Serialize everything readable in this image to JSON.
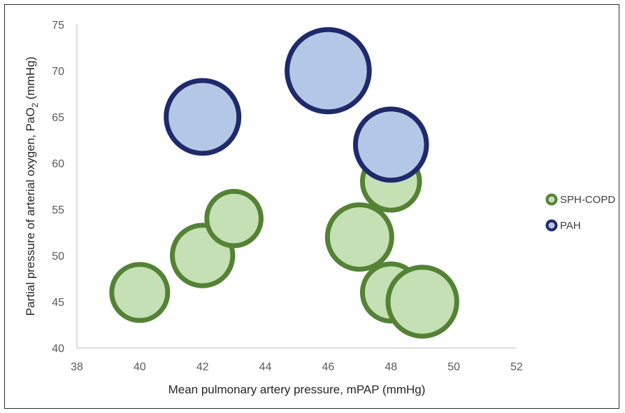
{
  "chart_data": {
    "type": "bubble",
    "title": "",
    "xlabel": "Mean pulmonary artery pressure,  mPAP (mmHg)",
    "ylabel": {
      "main": "Partial pressure of arterial oxygen, PaO",
      "subscript": "2",
      "unit": " (mmHg)"
    },
    "xlim": [
      38,
      52
    ],
    "ylim": [
      40,
      75
    ],
    "xticks": [
      38,
      40,
      42,
      44,
      46,
      48,
      50,
      52
    ],
    "yticks": [
      40,
      45,
      50,
      55,
      60,
      65,
      70,
      75
    ],
    "grid": false,
    "legend_position": "right",
    "series": [
      {
        "name": "SPH-COPD",
        "fill": "#c5e0b4",
        "stroke": "#548235",
        "points": [
          {
            "x": 40,
            "y": 46,
            "size": 1.0
          },
          {
            "x": 42,
            "y": 50,
            "size": 1.08
          },
          {
            "x": 43,
            "y": 54,
            "size": 0.97
          },
          {
            "x": 47,
            "y": 52,
            "size": 1.15
          },
          {
            "x": 48,
            "y": 58,
            "size": 1.02
          },
          {
            "x": 48,
            "y": 46,
            "size": 1.02
          },
          {
            "x": 49,
            "y": 45,
            "size": 1.23
          }
        ]
      },
      {
        "name": "PAH",
        "fill": "#b4c7e7",
        "stroke": "#1f2a6b",
        "points": [
          {
            "x": 42,
            "y": 65,
            "size": 1.3
          },
          {
            "x": 46,
            "y": 70,
            "size": 1.47
          },
          {
            "x": 48,
            "y": 62,
            "size": 1.27
          }
        ]
      }
    ]
  }
}
